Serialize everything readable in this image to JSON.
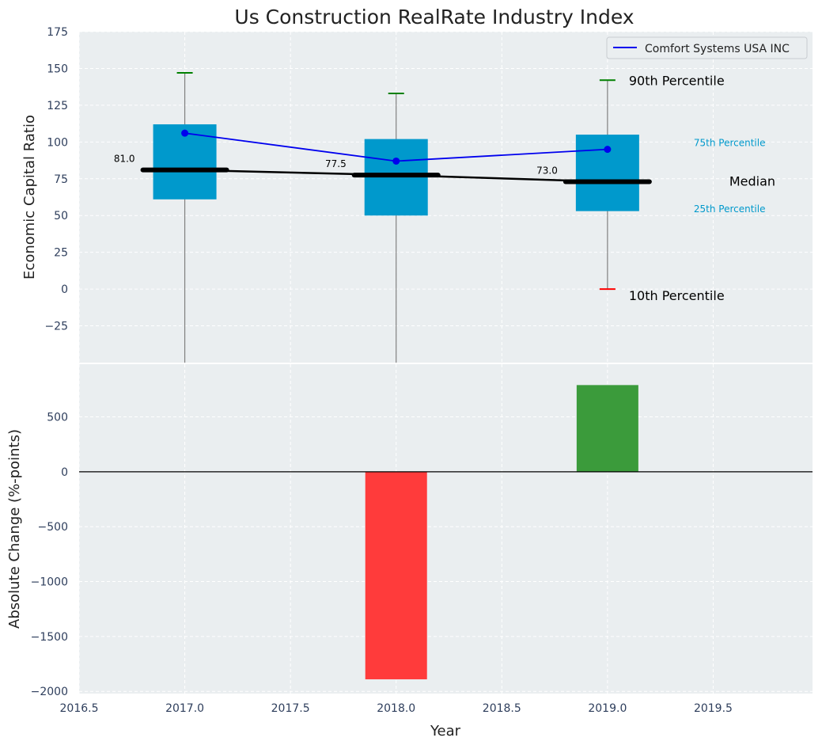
{
  "title": "Us Construction RealRate Industry Index",
  "chart_data": [
    {
      "type": "box",
      "title": "Us Construction RealRate Industry Index",
      "ylabel": "Economic Capital Ratio",
      "xlim": [
        2016.5,
        2019.97
      ],
      "ylim": [
        -50,
        175
      ],
      "yticks": [
        -25,
        0,
        25,
        50,
        75,
        100,
        125,
        150,
        175
      ],
      "ytick_labels": [
        "−25",
        "0",
        "25",
        "50",
        "75",
        "100",
        "125",
        "150",
        "175"
      ],
      "grid": true,
      "legend_position": "top-right",
      "colors": {
        "box": "#0099cc",
        "company_line": "#0000ee",
        "median": "#000000",
        "p90_cap": "#008000",
        "p10_cap": "#ff0000",
        "whisker": "#808080",
        "background": "#eaeef0"
      },
      "years": [
        2017,
        2018,
        2019
      ],
      "p90": [
        147,
        133,
        142
      ],
      "p75": [
        112,
        102,
        105
      ],
      "median": [
        81.0,
        77.5,
        73.0
      ],
      "median_labels": [
        "81.0",
        "77.5",
        "73.0"
      ],
      "p25": [
        61,
        50,
        53
      ],
      "p10": [
        null,
        null,
        0
      ],
      "company_series": {
        "name": "Comfort Systems USA INC",
        "values": [
          106,
          87,
          95
        ]
      },
      "annotations": {
        "p90": "90th Percentile",
        "p75": "75th Percentile",
        "median": "Median",
        "p25": "25th Percentile",
        "p10": "10th Percentile"
      }
    },
    {
      "type": "bar",
      "xlabel": "Year",
      "ylabel": "Absolute Change (%-points)",
      "xlim": [
        2016.5,
        2019.97
      ],
      "ylim": [
        -2020,
        980
      ],
      "yticks": [
        -2000,
        -1500,
        -1000,
        -500,
        0,
        500
      ],
      "ytick_labels": [
        "−2000",
        "−1500",
        "−1000",
        "−500",
        "0",
        "500"
      ],
      "xticks": [
        2016.5,
        2017.0,
        2017.5,
        2018.0,
        2018.5,
        2019.0,
        2019.5
      ],
      "xtick_labels": [
        "2016.5",
        "2017.0",
        "2017.5",
        "2018.0",
        "2018.5",
        "2019.0",
        "2019.5"
      ],
      "grid": true,
      "bars": [
        {
          "x": 2018,
          "value": -1890,
          "color": "#ff3b3b"
        },
        {
          "x": 2019,
          "value": 790,
          "color": "#3b9b3b"
        }
      ]
    }
  ]
}
